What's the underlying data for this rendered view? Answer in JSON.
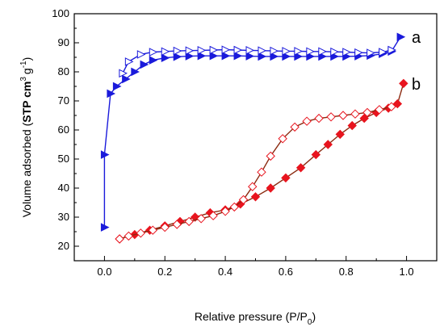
{
  "chart_data": {
    "type": "scatter",
    "xlabel": "Relative pressure (P/P",
    "xlabel_sub": "0",
    "xlabel_tail": ")",
    "ylabel_main": "Volume adsorbed (",
    "ylabel_bold": "STP cm",
    "ylabel_sup1": "3",
    "ylabel_mid": "g",
    "ylabel_sup2": "-1",
    "ylabel_tail": ")",
    "xlim": [
      -0.1,
      1.1
    ],
    "ylim": [
      15,
      100
    ],
    "xticks": [
      "0.0",
      "0.2",
      "0.4",
      "0.6",
      "0.8",
      "1.0"
    ],
    "yticks": [
      "20",
      "30",
      "40",
      "50",
      "60",
      "70",
      "80",
      "90",
      "100"
    ],
    "series": [
      {
        "name": "a",
        "branch": "adsorption",
        "color": "#1a1adb",
        "marker": "triangle-right-filled",
        "x": [
          0.0,
          0.0,
          0.02,
          0.04,
          0.07,
          0.1,
          0.13,
          0.16,
          0.2,
          0.24,
          0.28,
          0.32,
          0.36,
          0.4,
          0.44,
          0.48,
          0.52,
          0.56,
          0.6,
          0.64,
          0.68,
          0.72,
          0.76,
          0.8,
          0.84,
          0.88,
          0.92,
          0.95,
          0.98
        ],
        "y": [
          26.5,
          51.5,
          72.5,
          75.0,
          77.5,
          80.0,
          82.5,
          84.0,
          84.8,
          85.2,
          85.4,
          85.5,
          85.5,
          85.5,
          85.5,
          85.4,
          85.3,
          85.3,
          85.3,
          85.3,
          85.3,
          85.3,
          85.3,
          85.3,
          85.4,
          85.6,
          86.2,
          87.0,
          92.0
        ]
      },
      {
        "name": "",
        "branch": "desorption",
        "color": "#1a1adb",
        "marker": "triangle-right-open",
        "x": [
          0.95,
          0.92,
          0.88,
          0.84,
          0.8,
          0.76,
          0.72,
          0.68,
          0.64,
          0.6,
          0.56,
          0.52,
          0.48,
          0.44,
          0.4,
          0.36,
          0.32,
          0.28,
          0.24,
          0.2,
          0.16,
          0.12,
          0.08,
          0.06
        ],
        "y": [
          87.5,
          86.8,
          86.5,
          86.6,
          86.8,
          86.9,
          87.0,
          87.0,
          87.1,
          87.1,
          87.2,
          87.3,
          87.4,
          87.5,
          87.6,
          87.5,
          87.4,
          87.3,
          87.2,
          87.0,
          86.8,
          86.0,
          83.5,
          79.5
        ]
      },
      {
        "name": "b",
        "branch": "adsorption",
        "color": "#e8141e",
        "marker": "diamond-filled",
        "x": [
          0.05,
          0.1,
          0.15,
          0.2,
          0.25,
          0.3,
          0.35,
          0.4,
          0.45,
          0.5,
          0.55,
          0.6,
          0.65,
          0.7,
          0.74,
          0.78,
          0.82,
          0.86,
          0.9,
          0.94,
          0.97,
          0.99
        ],
        "y": [
          22.5,
          24.0,
          25.5,
          27.0,
          28.5,
          30.0,
          31.5,
          32.5,
          34.5,
          37.0,
          40.0,
          43.5,
          47.0,
          51.5,
          55.0,
          58.5,
          61.5,
          64.0,
          66.0,
          67.5,
          69.0,
          76.0
        ]
      },
      {
        "name": "",
        "branch": "desorption",
        "color": "#e8141e",
        "marker": "diamond-open",
        "x": [
          0.95,
          0.91,
          0.87,
          0.83,
          0.79,
          0.75,
          0.71,
          0.67,
          0.63,
          0.59,
          0.55,
          0.52,
          0.49,
          0.46,
          0.43,
          0.4,
          0.36,
          0.32,
          0.28,
          0.24,
          0.2,
          0.16,
          0.12,
          0.08,
          0.05
        ],
        "y": [
          68.0,
          67.0,
          66.0,
          65.5,
          65.0,
          64.5,
          64.0,
          63.0,
          61.0,
          57.0,
          51.0,
          45.5,
          40.5,
          36.0,
          33.5,
          32.0,
          30.5,
          29.5,
          28.5,
          27.5,
          26.5,
          25.5,
          24.5,
          23.5,
          22.5
        ]
      }
    ],
    "grid": false
  }
}
